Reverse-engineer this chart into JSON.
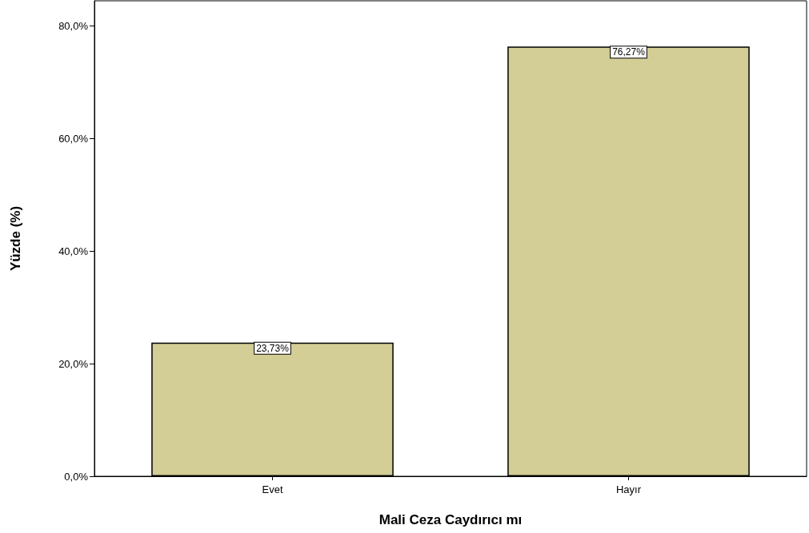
{
  "chart_data": {
    "type": "bar",
    "xlabel": "Mali Ceza Caydırıcı mı",
    "ylabel": "Yüzde (%)",
    "categories": [
      "Evet",
      "Hayır"
    ],
    "values": [
      23.73,
      76.27
    ],
    "value_labels": [
      "23,73%",
      "76,27%"
    ],
    "color": "#d3cd96",
    "ylim": [
      0,
      84.4
    ],
    "yticks": [
      {
        "value": 0,
        "label": "0,0%"
      },
      {
        "value": 20,
        "label": "20,0%"
      },
      {
        "value": 40,
        "label": "40,0%"
      },
      {
        "value": 60,
        "label": "60,0%"
      },
      {
        "value": 80,
        "label": "80,0%"
      }
    ],
    "grid": false
  }
}
